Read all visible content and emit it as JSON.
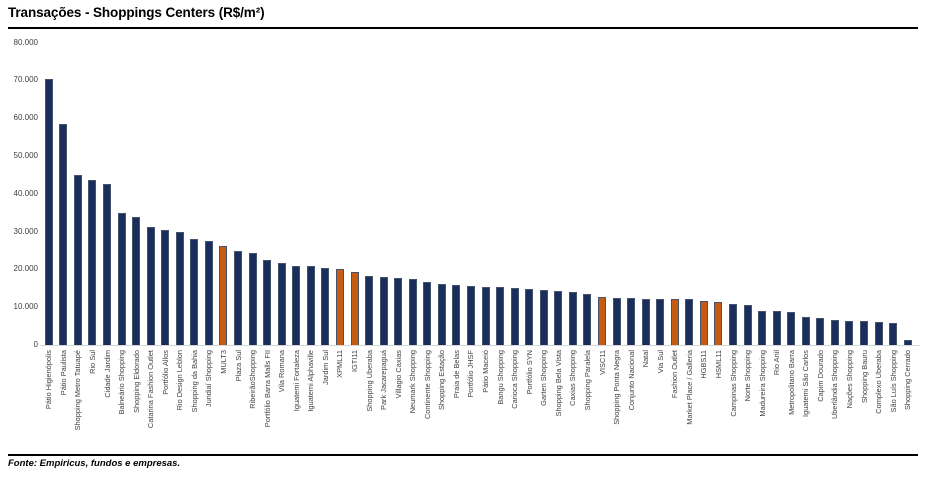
{
  "title": "Transações - Shoppings Centers (R$/m²)",
  "source": "Fonte: Empiricus, fundos e empresas.",
  "colors": {
    "bar_default": "#1a2d5c",
    "bar_highlight": "#c75b12",
    "bar_border": "#44546a",
    "axis_line": "#d6d6d6",
    "text": "#000000"
  },
  "chart_data": {
    "type": "bar",
    "title": "Transações - Shoppings Centers (R$/m²)",
    "xlabel": "",
    "ylabel": "",
    "ylim": [
      0,
      80000
    ],
    "ytick_labels": [
      "0",
      "10.000",
      "20.000",
      "30.000",
      "40.000",
      "50.000",
      "60.000",
      "70.000",
      "80.000"
    ],
    "grid": false,
    "legend": false,
    "categories": [
      "Pátio Higienópolis",
      "Pátio Paulista",
      "Shopping Metro Tatuapé",
      "Rio Sul",
      "Cidade Jardim",
      "Balneário Shopping",
      "Shopping Eldorado",
      "Catarina Fashion Outlet",
      "Portfólio Allos",
      "Rio Design Leblon",
      "Shopping da Bahia",
      "Jundiaí Shopping",
      "MULT3",
      "Plaza Sul",
      "RibeirãoShopping",
      "Portfólio Barra Malls FII",
      "Vila Romana",
      "Iguatemi Fortaleza",
      "Iguatemi Alphaville",
      "Jardim Sul",
      "XPML11",
      "IGTI11",
      "Shopping Uberaba",
      "Park Jacarepaguá",
      "Villagio Caxias",
      "Neumark Shopping",
      "Continente Shopping",
      "Shopping Estação",
      "Praia de Belas",
      "Portfólio JHSF",
      "Pátio Maceió",
      "Bangu Shopping",
      "Carioca Shopping",
      "Portfólio SYN",
      "Garten Shopping",
      "Shopping Bela Vista",
      "Caxias Shopping",
      "Shopping Paralela",
      "VISC11",
      "Shopping Ponta Negra",
      "Conjunto Nacional",
      "Natal",
      "Via Sul",
      "Fashion Outlet",
      "Market Place / Galleria",
      "HGBS11",
      "HSML11",
      "Campinas Shopping",
      "Norte Shopping",
      "Madureira Shopping",
      "Rio Anil",
      "Metropolitano Barra",
      "Iguatemi São Carlos",
      "Capim Dourado",
      "Uberlândia Shopping",
      "Nações Shopping",
      "Shopping Bauru",
      "Complexo Uberaba",
      "São Luís Shopping",
      "Shopping Cerrado"
    ],
    "values": [
      70500,
      58400,
      45000,
      43700,
      42600,
      35000,
      33800,
      31300,
      30400,
      29900,
      28000,
      27600,
      26300,
      24900,
      24400,
      22400,
      21600,
      21000,
      20800,
      20400,
      20000,
      19400,
      18200,
      17900,
      17700,
      17500,
      16700,
      16200,
      15900,
      15600,
      15400,
      15300,
      15100,
      14900,
      14600,
      14200,
      13900,
      13400,
      12700,
      12500,
      12400,
      12300,
      12300,
      12200,
      12100,
      11600,
      11500,
      10900,
      10500,
      9100,
      9000,
      8700,
      7400,
      7100,
      6600,
      6400,
      6300,
      6000,
      5800,
      1200
    ],
    "highlighted": [
      "MULT3",
      "XPML11",
      "IGTI11",
      "VISC11",
      "Fashion Outlet",
      "HGBS11",
      "HSML11"
    ]
  }
}
